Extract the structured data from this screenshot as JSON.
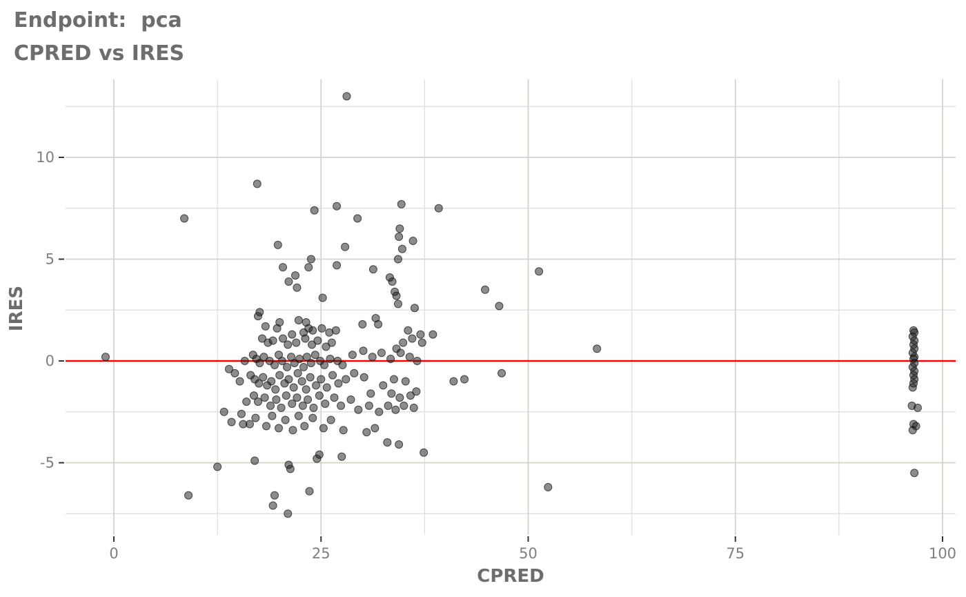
{
  "chart_data": {
    "type": "scatter",
    "title": "Endpoint:  pca",
    "subtitle": "CPRED vs IRES",
    "xlabel": "CPRED",
    "ylabel": "IRES",
    "x_ticks": [
      0,
      25,
      50,
      75,
      100
    ],
    "y_ticks": [
      -5,
      0,
      5,
      10
    ],
    "x_minor_gridlines": [
      12.5,
      37.5,
      62.5,
      87.5
    ],
    "y_minor_gridlines": [
      -7.5,
      -2.5,
      2.5,
      7.5,
      12.5
    ],
    "xlim": [
      -5.8,
      101.6
    ],
    "ylim": [
      -8.5,
      13.8
    ],
    "grid": true,
    "legend_position": "none",
    "hline": {
      "y": 0,
      "color": "#ff0000"
    },
    "style": {
      "point_color": "#1a1a1a",
      "point_opacity": 0.5,
      "point_radius": 5.5,
      "grid_major_color": "#d6d3ca",
      "grid_minor_color": "#e3e1d9",
      "tick_mark_color": "#333333",
      "tick_label_color": "#7f7f7f",
      "title_color": "#6d6d6d",
      "background": "#ffffff"
    },
    "points": [
      [
        -1.0,
        0.2
      ],
      [
        8.5,
        7.0
      ],
      [
        9.0,
        -6.6
      ],
      [
        12.5,
        -5.2
      ],
      [
        13.3,
        -2.5
      ],
      [
        28.1,
        13.0
      ],
      [
        17.3,
        8.7
      ],
      [
        51.3,
        4.4
      ],
      [
        52.4,
        -6.2
      ],
      [
        58.3,
        0.6
      ],
      [
        46.8,
        -0.6
      ],
      [
        44.8,
        3.5
      ],
      [
        46.5,
        2.7
      ],
      [
        39.2,
        7.5
      ],
      [
        37.4,
        -4.5
      ],
      [
        41.0,
        -1.0
      ],
      [
        42.3,
        -0.9
      ],
      [
        24.2,
        7.4
      ],
      [
        26.9,
        7.6
      ],
      [
        29.4,
        7.0
      ],
      [
        34.7,
        7.7
      ],
      [
        34.5,
        6.5
      ],
      [
        34.4,
        6.1
      ],
      [
        36.1,
        5.9
      ],
      [
        19.8,
        5.7
      ],
      [
        27.9,
        5.6
      ],
      [
        34.8,
        5.5
      ],
      [
        34.3,
        5.0
      ],
      [
        23.8,
        5.0
      ],
      [
        26.9,
        4.7
      ],
      [
        23.5,
        4.6
      ],
      [
        31.3,
        4.5
      ],
      [
        20.4,
        4.6
      ],
      [
        21.9,
        4.2
      ],
      [
        33.3,
        4.1
      ],
      [
        33.6,
        3.9
      ],
      [
        21.1,
        3.9
      ],
      [
        22.1,
        3.6
      ],
      [
        33.9,
        3.4
      ],
      [
        25.2,
        3.1
      ],
      [
        34.1,
        3.2
      ],
      [
        36.3,
        2.6
      ],
      [
        34.3,
        2.8
      ],
      [
        17.6,
        2.4
      ],
      [
        17.4,
        2.2
      ],
      [
        20.0,
        1.9
      ],
      [
        22.3,
        2.0
      ],
      [
        23.2,
        1.9
      ],
      [
        18.3,
        1.7
      ],
      [
        19.7,
        1.6
      ],
      [
        30.0,
        1.8
      ],
      [
        31.6,
        2.1
      ],
      [
        31.9,
        1.8
      ],
      [
        23.5,
        1.6
      ],
      [
        24.0,
        1.5
      ],
      [
        26.0,
        1.4
      ],
      [
        26.8,
        1.5
      ],
      [
        35.5,
        1.5
      ],
      [
        38.5,
        1.3
      ],
      [
        37.0,
        1.3
      ],
      [
        22.9,
        1.4
      ],
      [
        21.5,
        1.3
      ],
      [
        25.1,
        1.6
      ],
      [
        17.9,
        1.1
      ],
      [
        18.6,
        0.9
      ],
      [
        19.2,
        1.0
      ],
      [
        20.4,
        1.1
      ],
      [
        21.0,
        0.8
      ],
      [
        22.0,
        0.9
      ],
      [
        23.1,
        1.1
      ],
      [
        23.9,
        0.8
      ],
      [
        24.6,
        1.0
      ],
      [
        25.6,
        0.7
      ],
      [
        26.3,
        0.9
      ],
      [
        34.9,
        0.9
      ],
      [
        36.0,
        1.1
      ],
      [
        37.2,
        0.9
      ],
      [
        34.1,
        0.6
      ],
      [
        16.8,
        0.3
      ],
      [
        17.2,
        0.1
      ],
      [
        17.6,
        -0.1
      ],
      [
        18.1,
        0.2
      ],
      [
        18.8,
        0.0
      ],
      [
        19.4,
        -0.2
      ],
      [
        19.9,
        0.3
      ],
      [
        20.3,
        0.0
      ],
      [
        20.9,
        -0.3
      ],
      [
        21.4,
        0.2
      ],
      [
        21.8,
        -0.1
      ],
      [
        22.4,
        0.1
      ],
      [
        22.9,
        -0.3
      ],
      [
        23.3,
        0.2
      ],
      [
        23.8,
        -0.1
      ],
      [
        24.3,
        0.3
      ],
      [
        24.9,
        0.0
      ],
      [
        25.4,
        -0.2
      ],
      [
        26.1,
        0.1
      ],
      [
        27.0,
        0.0
      ],
      [
        27.6,
        -0.2
      ],
      [
        28.8,
        0.3
      ],
      [
        30.1,
        0.5
      ],
      [
        31.2,
        0.2
      ],
      [
        32.3,
        0.4
      ],
      [
        33.4,
        0.1
      ],
      [
        34.6,
        0.4
      ],
      [
        35.7,
        0.2
      ],
      [
        36.6,
        0.0
      ],
      [
        15.8,
        0.0
      ],
      [
        13.9,
        -0.4
      ],
      [
        14.6,
        -0.6
      ],
      [
        16.5,
        -0.7
      ],
      [
        17.0,
        -0.9
      ],
      [
        17.5,
        -1.1
      ],
      [
        18.0,
        -0.8
      ],
      [
        18.5,
        -1.2
      ],
      [
        19.0,
        -1.0
      ],
      [
        19.5,
        -1.4
      ],
      [
        20.0,
        -0.7
      ],
      [
        20.6,
        -1.1
      ],
      [
        21.1,
        -0.9
      ],
      [
        21.7,
        -1.3
      ],
      [
        22.2,
        -0.6
      ],
      [
        22.7,
        -1.0
      ],
      [
        23.2,
        -1.4
      ],
      [
        23.7,
        -0.8
      ],
      [
        24.4,
        -1.2
      ],
      [
        25.0,
        -0.9
      ],
      [
        25.7,
        -1.3
      ],
      [
        26.4,
        -0.7
      ],
      [
        27.1,
        -1.1
      ],
      [
        28.0,
        -0.9
      ],
      [
        29.0,
        -0.6
      ],
      [
        30.2,
        -0.8
      ],
      [
        15.2,
        -1.0
      ],
      [
        32.5,
        -1.2
      ],
      [
        33.8,
        -0.9
      ],
      [
        35.2,
        -1.0
      ],
      [
        36.5,
        -1.5
      ],
      [
        31.0,
        -1.6
      ],
      [
        16.0,
        -2.0
      ],
      [
        16.9,
        -1.7
      ],
      [
        17.4,
        -2.0
      ],
      [
        18.2,
        -1.8
      ],
      [
        18.9,
        -2.2
      ],
      [
        19.6,
        -1.9
      ],
      [
        20.2,
        -2.3
      ],
      [
        20.8,
        -1.7
      ],
      [
        21.5,
        -2.1
      ],
      [
        22.1,
        -1.8
      ],
      [
        22.8,
        -2.2
      ],
      [
        23.4,
        -1.9
      ],
      [
        24.1,
        -2.3
      ],
      [
        24.8,
        -1.7
      ],
      [
        25.5,
        -2.1
      ],
      [
        26.6,
        -1.8
      ],
      [
        27.4,
        -2.2
      ],
      [
        28.6,
        -1.9
      ],
      [
        29.5,
        -2.4
      ],
      [
        30.8,
        -2.2
      ],
      [
        32.0,
        -2.5
      ],
      [
        33.1,
        -2.2
      ],
      [
        34.0,
        -2.4
      ],
      [
        35.0,
        -2.2
      ],
      [
        36.2,
        -2.3
      ],
      [
        33.5,
        -1.6
      ],
      [
        34.5,
        -1.8
      ],
      [
        35.8,
        -1.7
      ],
      [
        14.2,
        -3.0
      ],
      [
        15.4,
        -2.6
      ],
      [
        15.6,
        -3.1
      ],
      [
        16.4,
        -3.1
      ],
      [
        17.1,
        -2.8
      ],
      [
        18.4,
        -3.2
      ],
      [
        19.1,
        -2.7
      ],
      [
        19.9,
        -3.3
      ],
      [
        20.7,
        -2.9
      ],
      [
        21.6,
        -3.4
      ],
      [
        22.3,
        -2.7
      ],
      [
        23.0,
        -3.2
      ],
      [
        24.0,
        -2.8
      ],
      [
        25.3,
        -3.3
      ],
      [
        26.2,
        -2.9
      ],
      [
        27.7,
        -3.4
      ],
      [
        30.5,
        -3.5
      ],
      [
        31.5,
        -3.3
      ],
      [
        21.1,
        -5.1
      ],
      [
        21.3,
        -5.3
      ],
      [
        17.0,
        -4.9
      ],
      [
        24.5,
        -4.8
      ],
      [
        24.8,
        -4.6
      ],
      [
        27.5,
        -4.7
      ],
      [
        33.0,
        -4.0
      ],
      [
        34.4,
        -4.1
      ],
      [
        19.2,
        -7.1
      ],
      [
        21.0,
        -7.5
      ],
      [
        19.4,
        -6.6
      ],
      [
        23.6,
        -6.4
      ],
      [
        96.5,
        1.5
      ],
      [
        96.6,
        1.4
      ],
      [
        96.4,
        1.2
      ],
      [
        96.6,
        1.0
      ],
      [
        96.5,
        0.8
      ],
      [
        96.6,
        0.6
      ],
      [
        96.4,
        0.4
      ],
      [
        96.6,
        0.2
      ],
      [
        96.5,
        0.1
      ],
      [
        96.6,
        -0.1
      ],
      [
        96.4,
        -0.3
      ],
      [
        96.6,
        -0.5
      ],
      [
        96.5,
        -0.7
      ],
      [
        96.6,
        -0.9
      ],
      [
        96.5,
        -1.1
      ],
      [
        96.4,
        -1.3
      ],
      [
        96.3,
        -2.2
      ],
      [
        97.0,
        -2.3
      ],
      [
        96.5,
        -3.1
      ],
      [
        96.8,
        -3.2
      ],
      [
        96.4,
        -3.4
      ],
      [
        96.6,
        -5.5
      ]
    ]
  }
}
